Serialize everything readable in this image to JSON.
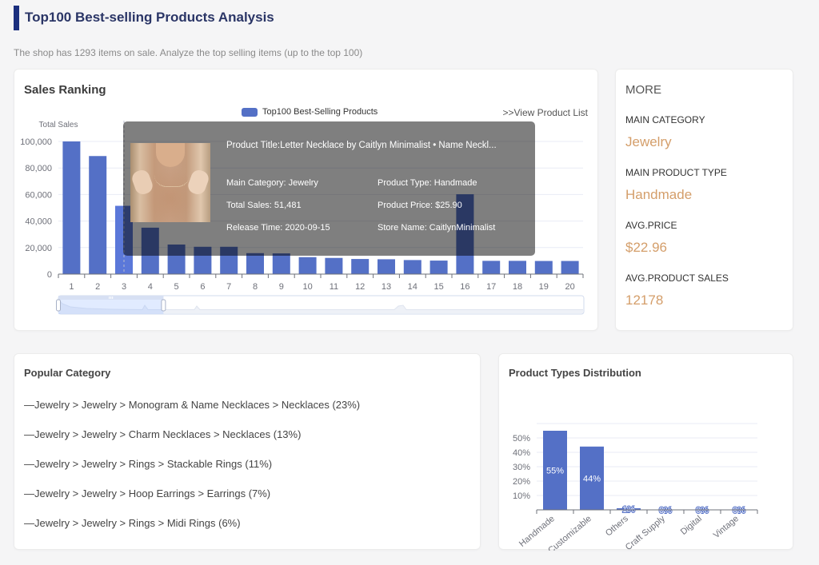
{
  "header": {
    "title": "Top100 Best-selling Products Analysis",
    "subtitle": "The shop has 1293 items on sale. Analyze the top selling items (up to the top 100)"
  },
  "sales_ranking": {
    "title": "Sales Ranking",
    "legend_label": "Top100 Best-Selling Products",
    "view_link": ">>View Product List",
    "tooltip": {
      "image_icon": "product-photo",
      "title": "Product Title:Letter Necklace by Caitlyn Minimalist • Name Neckl...",
      "fields": [
        "Main Category: Jewelry",
        "Product Type: Handmade",
        "Total Sales: 51,481",
        "Product Price: $25.90",
        "Release Time: 2020-09-15",
        "Store Name: CaitlynMinimalist"
      ]
    }
  },
  "more": {
    "title": "MORE",
    "stats": [
      {
        "label": "MAIN CATEGORY",
        "value": "Jewelry"
      },
      {
        "label": "MAIN PRODUCT TYPE",
        "value": "Handmade"
      },
      {
        "label": "AVG.PRICE",
        "value": "$22.96"
      },
      {
        "label": "AVG.PRODUCT SALES",
        "value": "12178"
      }
    ]
  },
  "popular_category": {
    "title": "Popular Category",
    "items": [
      "—Jewelry > Jewelry > Monogram & Name Necklaces > Necklaces (23%)",
      "—Jewelry > Jewelry > Charm Necklaces > Necklaces (13%)",
      "—Jewelry > Jewelry > Rings > Stackable Rings (11%)",
      "—Jewelry > Jewelry > Hoop Earrings > Earrings (7%)",
      "—Jewelry > Jewelry > Rings > Midi Rings (6%)"
    ]
  },
  "product_types": {
    "title": "Product Types Distribution"
  },
  "colors": {
    "accent": "#1b2f7e",
    "title": "#2a3566",
    "bar": "#5470c6",
    "bar_highlight": "#5b78d9",
    "stat_value": "#d49e6a"
  },
  "chart_data": [
    {
      "type": "bar",
      "title": "Sales Ranking",
      "xlabel": "",
      "ylabel": "Total Sales",
      "legend": [
        "Top100 Best-Selling Products"
      ],
      "legend_placement": "top-center",
      "categories": [
        "1",
        "2",
        "3",
        "4",
        "5",
        "6",
        "7",
        "8",
        "9",
        "10",
        "11",
        "12",
        "13",
        "14",
        "15",
        "16",
        "17",
        "18",
        "19",
        "20"
      ],
      "values": [
        100000,
        89000,
        51481,
        35000,
        22300,
        20600,
        20600,
        15800,
        15600,
        12800,
        12200,
        11400,
        11200,
        10600,
        10200,
        60200,
        10000,
        10000,
        9900,
        9900
      ],
      "ylim": [
        0,
        100000
      ],
      "y_ticks": [
        0,
        20000,
        40000,
        60000,
        80000,
        100000
      ],
      "y_tick_labels": [
        "0",
        "20,000",
        "40,000",
        "60,000",
        "80,000",
        "100,000"
      ],
      "grid": true,
      "highlighted_category": "3",
      "data_zoom": {
        "start_percent": 0,
        "end_percent": 20
      }
    },
    {
      "type": "bar",
      "title": "Product Types Distribution",
      "xlabel": "",
      "ylabel": "",
      "categories": [
        "Handmade",
        "Customizable",
        "Others",
        "Craft Supply",
        "Digital",
        "Vintage"
      ],
      "values": [
        55,
        44,
        1,
        0,
        0,
        0
      ],
      "value_labels": [
        "55%",
        "44%",
        "1%",
        "0%",
        "0%",
        "0%"
      ],
      "ylim": [
        0,
        60
      ],
      "y_ticks": [
        10,
        20,
        30,
        40,
        50
      ],
      "y_tick_labels": [
        "10%",
        "20%",
        "30%",
        "40%",
        "50%"
      ],
      "grid": true
    }
  ]
}
